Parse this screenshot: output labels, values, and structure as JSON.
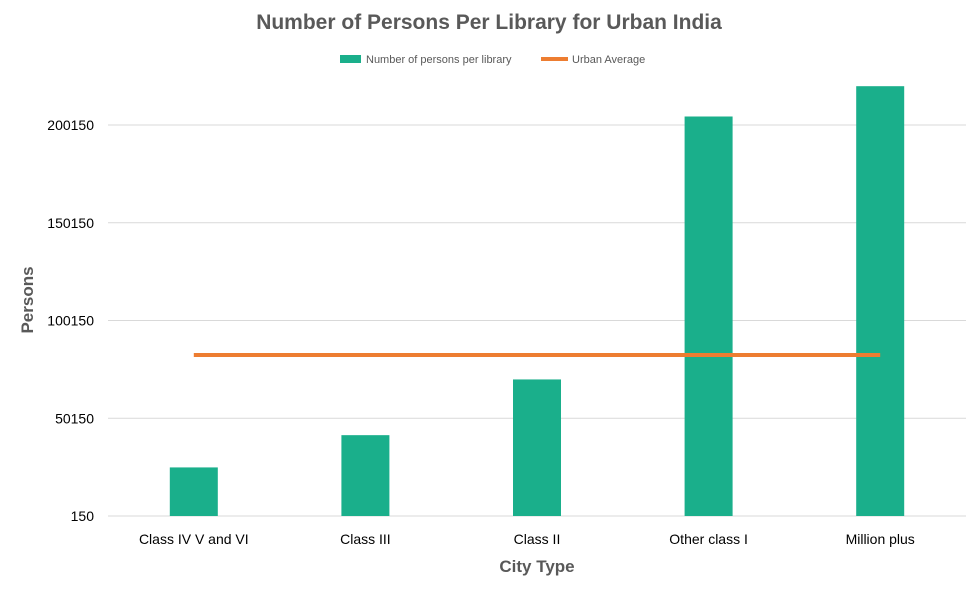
{
  "chart_data": {
    "type": "bar",
    "title": "Number of Persons Per Library for Urban India",
    "xlabel": "City Type",
    "ylabel": "Persons",
    "categories": [
      "Class IV V and VI",
      "Class III",
      "Class II",
      "Other class I",
      "Million plus"
    ],
    "series": [
      {
        "name": "Number of persons per library",
        "type": "bar",
        "color": "#1aaf8b",
        "values": [
          25000,
          41500,
          70000,
          204500,
          220000
        ]
      },
      {
        "name": "Urban Average",
        "type": "line",
        "color": "#ed7d31",
        "values": [
          82500,
          82500,
          82500,
          82500,
          82500
        ]
      }
    ],
    "ylim": [
      150,
      225000
    ],
    "yticks": [
      150,
      50150,
      100150,
      150150,
      200150
    ],
    "ytick_labels": [
      "150",
      "50150",
      "100150",
      "150150",
      "200150"
    ],
    "grid": true,
    "legend": "top-center"
  }
}
